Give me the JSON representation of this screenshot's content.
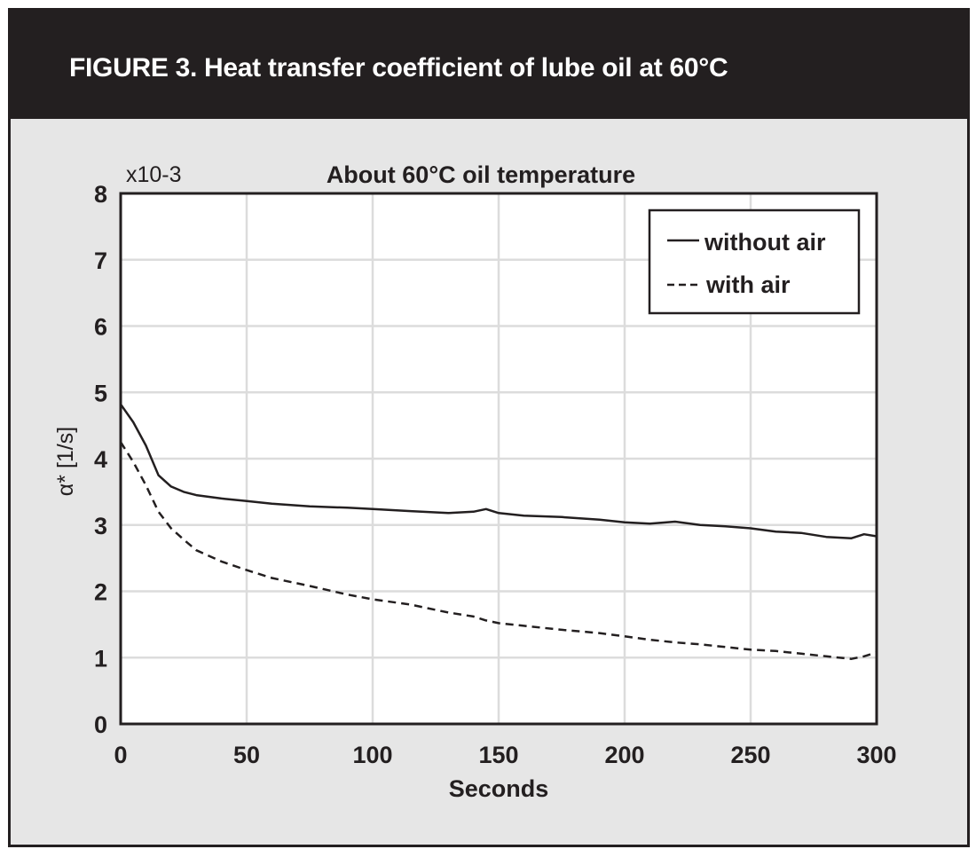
{
  "figure_title": "FIGURE 3. Heat transfer coefficient of lube oil at 60°C",
  "colors": {
    "header_bg": "#231f20",
    "panel_bg": "#e6e6e6",
    "plot_bg": "#ffffff",
    "grid": "#dcdcdc",
    "line": "#231f20"
  },
  "chart_data": {
    "type": "line",
    "title": "About 60°C oil temperature",
    "xlabel": "Seconds",
    "ylabel": "α* [1/s]",
    "y_multiplier": "x10-3",
    "xlim": [
      0,
      300
    ],
    "ylim": [
      0,
      8
    ],
    "xticks": [
      0,
      50,
      100,
      150,
      200,
      250,
      300
    ],
    "yticks": [
      0,
      1,
      2,
      3,
      4,
      5,
      6,
      7,
      8
    ],
    "grid": true,
    "legend_position": "top-right",
    "x": [
      0,
      5,
      10,
      15,
      20,
      25,
      30,
      40,
      50,
      60,
      75,
      90,
      100,
      115,
      130,
      140,
      145,
      150,
      160,
      175,
      190,
      200,
      210,
      220,
      230,
      240,
      250,
      260,
      270,
      280,
      290,
      295,
      300
    ],
    "series": [
      {
        "name": "without air",
        "style": "solid",
        "values": [
          4.82,
          4.55,
          4.2,
          3.75,
          3.58,
          3.5,
          3.45,
          3.4,
          3.36,
          3.32,
          3.28,
          3.26,
          3.24,
          3.21,
          3.18,
          3.2,
          3.24,
          3.18,
          3.14,
          3.12,
          3.08,
          3.04,
          3.02,
          3.05,
          3.0,
          2.98,
          2.95,
          2.9,
          2.88,
          2.82,
          2.8,
          2.86,
          2.83
        ]
      },
      {
        "name": "with air",
        "style": "dashed",
        "values": [
          4.25,
          3.95,
          3.6,
          3.2,
          2.95,
          2.78,
          2.62,
          2.45,
          2.32,
          2.2,
          2.08,
          1.95,
          1.88,
          1.8,
          1.68,
          1.62,
          1.56,
          1.52,
          1.48,
          1.42,
          1.37,
          1.32,
          1.27,
          1.23,
          1.2,
          1.16,
          1.12,
          1.1,
          1.06,
          1.02,
          0.98,
          1.02,
          1.08
        ]
      }
    ]
  }
}
